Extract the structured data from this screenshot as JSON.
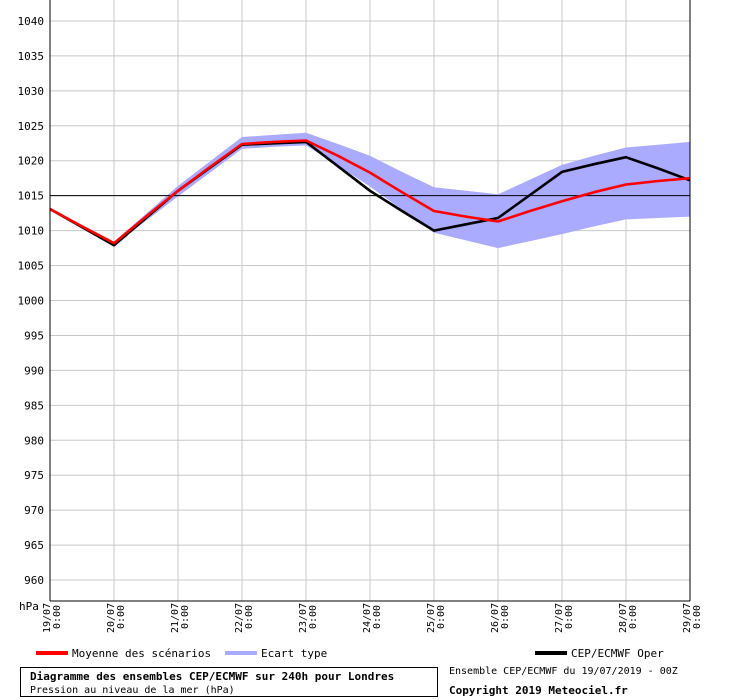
{
  "chart_data": {
    "type": "line",
    "y_unit_label": "hPa",
    "ylim": [
      960,
      1040
    ],
    "y_ticks": [
      960,
      965,
      970,
      975,
      980,
      985,
      990,
      995,
      1000,
      1005,
      1010,
      1015,
      1020,
      1025,
      1030,
      1035,
      1040
    ],
    "reference_line": 1015,
    "grid": true,
    "x_dates": [
      "19/07",
      "20/07",
      "21/07",
      "22/07",
      "23/07",
      "24/07",
      "25/07",
      "26/07",
      "27/07",
      "28/07",
      "29/07"
    ],
    "x_times": [
      "0:00",
      "0:00",
      "0:00",
      "0:00",
      "0:00",
      "0:00",
      "0:00",
      "0:00",
      "0:00",
      "0:00",
      "0:00"
    ],
    "x": [
      "19/07 0:00",
      "19/07 12:00",
      "20/07 0:00",
      "20/07 12:00",
      "21/07 0:00",
      "21/07 12:00",
      "22/07 0:00",
      "22/07 12:00",
      "23/07 0:00",
      "23/07 12:00",
      "24/07 0:00",
      "24/07 12:00",
      "25/07 0:00",
      "25/07 12:00",
      "26/07 0:00",
      "26/07 12:00",
      "27/07 0:00",
      "27/07 12:00",
      "28/07 0:00",
      "28/07 12:00",
      "29/07 0:00"
    ],
    "series": [
      {
        "name": "Ecart type",
        "color": "#aaaaff",
        "kind": "band",
        "upper": [
          1013.2,
          1010.8,
          1008.4,
          1012.4,
          1016.4,
          1019.9,
          1023.4,
          1023.7,
          1024.0,
          1022.4,
          1020.7,
          1018.4,
          1016.2,
          1015.7,
          1015.2,
          1017.3,
          1019.4,
          1020.7,
          1021.9,
          1022.3,
          1022.7
        ],
        "lower": [
          1013.0,
          1010.5,
          1007.9,
          1011.4,
          1014.9,
          1018.3,
          1021.7,
          1022.0,
          1022.2,
          1019.3,
          1016.3,
          1013.0,
          1009.7,
          1008.6,
          1007.5,
          1008.5,
          1009.5,
          1010.6,
          1011.6,
          1011.8,
          1012.0
        ]
      },
      {
        "name": "Moyenne des scénarios",
        "color": "#ff0000",
        "values": [
          1013.1,
          1010.6,
          1008.2,
          1012.0,
          1015.7,
          1019.1,
          1022.4,
          1022.7,
          1022.9,
          1020.7,
          1018.3,
          1015.5,
          1012.8,
          1012.0,
          1011.3,
          1012.8,
          1014.2,
          1015.5,
          1016.6,
          1017.1,
          1017.5
        ]
      },
      {
        "name": "CEP/ECMWF Oper",
        "color": "#000000",
        "values": [
          1013.1,
          1010.5,
          1007.9,
          1011.8,
          1015.7,
          1019.0,
          1022.3,
          1022.5,
          1022.7,
          1019.2,
          1015.7,
          1012.8,
          1010.0,
          1010.9,
          1011.8,
          1015.1,
          1018.4,
          1019.5,
          1020.5,
          1018.9,
          1017.2
        ]
      }
    ]
  },
  "legend": [
    {
      "label": "Moyenne des scénarios",
      "color": "#ff0000"
    },
    {
      "label": "Ecart type",
      "color": "#aaaaff"
    },
    {
      "label": "CEP/ECMWF Oper",
      "color": "#000000"
    }
  ],
  "info": {
    "title": "Diagramme des ensembles CEP/ECMWF sur 240h pour Londres",
    "subtitle": "Pression au niveau de la mer (hPa)"
  },
  "run_text": "Ensemble CEP/ECMWF du 19/07/2019 - 00Z",
  "copyright": "Copyright 2019 Meteociel.fr"
}
